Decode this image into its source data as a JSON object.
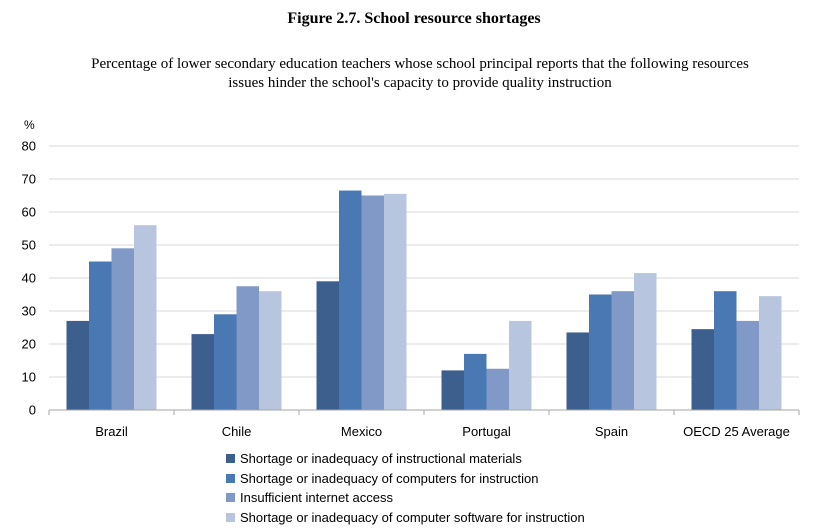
{
  "figure": {
    "title": "Figure 2.7. School resource shortages",
    "subtitle_line1": "Percentage of lower secondary education teachers whose school principal reports that the following resources",
    "subtitle_line2": "issues hinder the school's capacity to provide quality instruction"
  },
  "chart_data": {
    "type": "bar",
    "title": "Figure 2.7. School resource shortages",
    "subtitle": "Percentage of lower secondary education teachers whose school principal reports that the following resources issues hinder the school's capacity to provide quality instruction",
    "ylabel": "%",
    "ylim": [
      0,
      80
    ],
    "yticks": [
      0,
      10,
      20,
      30,
      40,
      50,
      60,
      70,
      80
    ],
    "grid": true,
    "legend_position": "bottom",
    "categories": [
      "Brazil",
      "Chile",
      "Mexico",
      "Portugal",
      "Spain",
      "OECD 25 Average"
    ],
    "series": [
      {
        "name": "Shortage or inadequacy of instructional materials",
        "color": "#3c5f8e",
        "values": [
          27,
          23,
          39,
          12,
          23.5,
          24.5
        ]
      },
      {
        "name": "Shortage or inadequacy of computers for instruction",
        "color": "#4a78b2",
        "values": [
          45,
          29,
          66.5,
          17,
          35,
          36
        ]
      },
      {
        "name": "Insufficient internet access",
        "color": "#8099c6",
        "values": [
          49,
          37.5,
          65,
          12.5,
          36,
          27
        ]
      },
      {
        "name": "Shortage or inadequacy of computer software for instruction",
        "color": "#b8c5de",
        "values": [
          56,
          36,
          65.5,
          27,
          41.5,
          34.5
        ]
      }
    ]
  }
}
